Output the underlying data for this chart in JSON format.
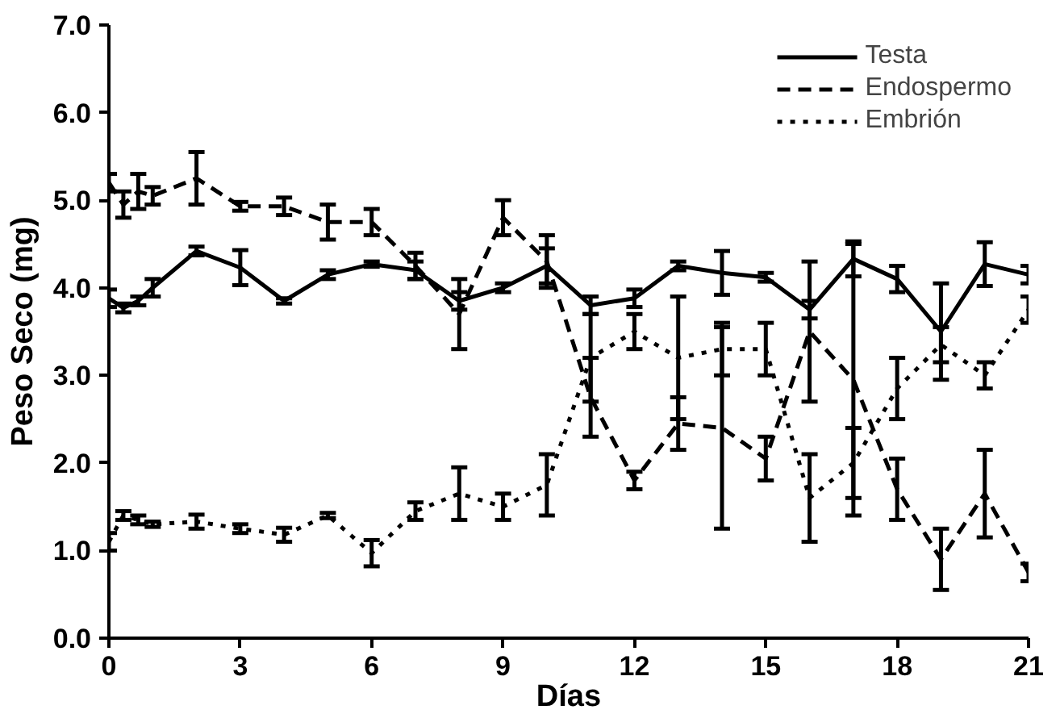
{
  "chart_data": {
    "type": "line",
    "xlabel": "Días",
    "ylabel": "Peso Seco (mg)",
    "x": [
      0,
      0.33,
      0.67,
      1,
      2,
      3,
      4,
      5,
      6,
      7,
      8,
      9,
      10,
      11,
      12,
      13,
      14,
      15,
      16,
      17,
      18,
      19,
      20,
      21
    ],
    "xlim": [
      0,
      21
    ],
    "xticks": [
      0,
      3,
      6,
      9,
      12,
      15,
      18,
      21
    ],
    "ylim": [
      0,
      7
    ],
    "yticks": [
      {
        "value": 0,
        "label": "0.0"
      },
      {
        "value": 1,
        "label": "1.0"
      },
      {
        "value": 2,
        "label": "2.0"
      },
      {
        "value": 3,
        "label": "3.0"
      },
      {
        "value": 4,
        "label": "4.0"
      },
      {
        "value": 5,
        "label": "5.0"
      },
      {
        "value": 6,
        "label": "6.0"
      },
      {
        "value": 7,
        "label": "7.0"
      }
    ],
    "grid": false,
    "legend": "top right",
    "marker": "none",
    "series": [
      {
        "name": "Testa",
        "color": "#000000",
        "line_style": "solid",
        "values": [
          3.88,
          3.77,
          3.85,
          4.0,
          4.42,
          4.23,
          3.85,
          4.15,
          4.27,
          4.2,
          3.85,
          4.0,
          4.25,
          3.8,
          3.88,
          4.25,
          4.17,
          4.12,
          3.75,
          4.33,
          4.1,
          3.5,
          4.27,
          4.15
        ],
        "errors": [
          0.1,
          0.05,
          0.05,
          0.1,
          0.05,
          0.2,
          0.03,
          0.05,
          0.03,
          0.1,
          0.1,
          0.05,
          0.2,
          0.1,
          0.1,
          0.05,
          0.25,
          0.05,
          0.1,
          0.2,
          0.15,
          0.55,
          0.25,
          0.1
        ]
      },
      {
        "name": "Endospermo",
        "color": "#000000",
        "line_style": "dashed",
        "values": [
          5.2,
          4.95,
          5.1,
          5.05,
          5.25,
          4.93,
          4.93,
          4.75,
          4.75,
          4.25,
          3.7,
          4.8,
          4.3,
          2.75,
          1.8,
          2.45,
          2.4,
          2.05,
          3.5,
          2.95,
          1.7,
          0.9,
          1.65,
          0.75
        ],
        "errors": [
          0.1,
          0.15,
          0.2,
          0.1,
          0.3,
          0.05,
          0.1,
          0.2,
          0.15,
          0.15,
          0.4,
          0.2,
          0.3,
          0.45,
          0.1,
          0.3,
          1.15,
          0.25,
          0.8,
          1.55,
          0.35,
          0.35,
          0.5,
          0.1
        ]
      },
      {
        "name": "Embrión",
        "color": "#000000",
        "line_style": "dotted",
        "values": [
          1.1,
          1.4,
          1.35,
          1.3,
          1.33,
          1.25,
          1.18,
          1.4,
          0.97,
          1.45,
          1.65,
          1.5,
          1.75,
          3.2,
          3.5,
          3.2,
          3.3,
          3.3,
          1.6,
          2.0,
          2.85,
          3.35,
          3.0,
          3.75
        ],
        "errors": [
          0.1,
          0.05,
          0.05,
          0.03,
          0.08,
          0.05,
          0.08,
          0.03,
          0.15,
          0.1,
          0.3,
          0.15,
          0.35,
          0.5,
          0.2,
          0.7,
          0.3,
          0.3,
          0.5,
          0.4,
          0.35,
          0.2,
          0.15,
          0.15
        ]
      }
    ]
  }
}
